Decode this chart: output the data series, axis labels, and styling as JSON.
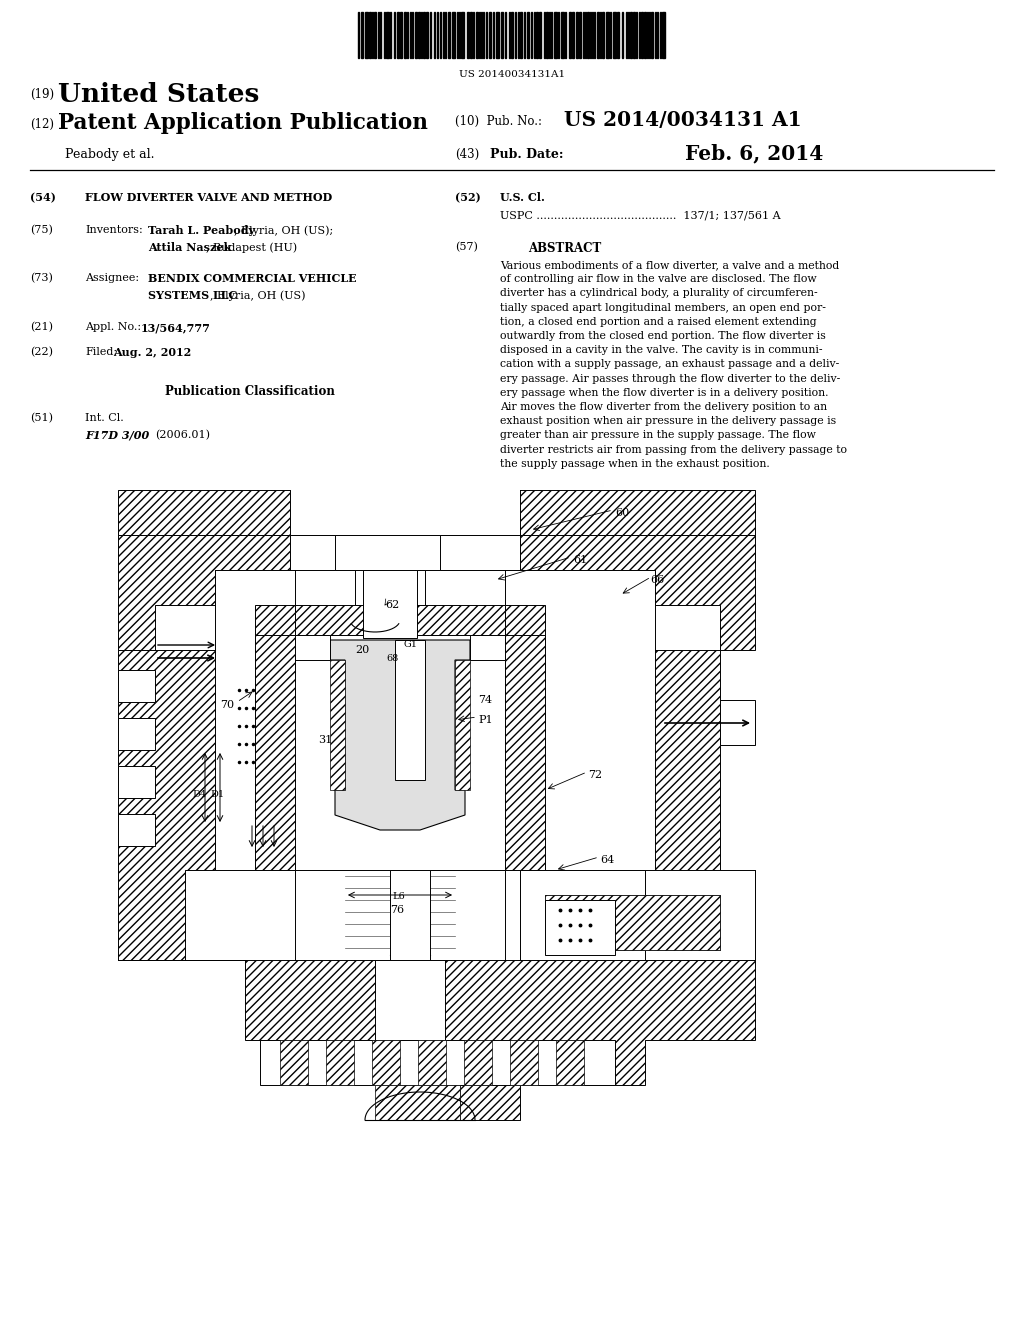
{
  "bg_color": "#ffffff",
  "barcode_text": "US 20140034131A1",
  "title_19_prefix": "(19)",
  "title_19": "United States",
  "title_12_prefix": "(12)",
  "title_12": "Patent Application Publication",
  "pub_no_prefix": "(10)",
  "pub_no_label": "Pub. No.:",
  "pub_no": "US 2014/0034131 A1",
  "pub_date_prefix": "(43)",
  "pub_date_label": "Pub. Date:",
  "pub_date": "Feb. 6, 2014",
  "applicant": "Peabody et al.",
  "f54_label": "(54)",
  "f54": "FLOW DIVERTER VALVE AND METHOD",
  "f52_label": "(52)",
  "f52": "U.S. Cl.",
  "uspc": "USPC ........................................  137/1; 137/561 A",
  "f75_label": "(75)",
  "f75_title": "Inventors:",
  "f75_name1_bold": "Tarah L. Peabody",
  "f75_name1_rest": ", Elyria, OH (US);",
  "f75_name2_bold": "Attila Naszek",
  "f75_name2_rest": ", Budapest (HU)",
  "f57_label": "(57)",
  "f57_title": "ABSTRACT",
  "abstract_lines": [
    "Various embodiments of a flow diverter, a valve and a method",
    "of controlling air flow in the valve are disclosed. The flow",
    "diverter has a cylindrical body, a plurality of circumferen-",
    "tially spaced apart longitudinal members, an open end por-",
    "tion, a closed end portion and a raised element extending",
    "outwardly from the closed end portion. The flow diverter is",
    "disposed in a cavity in the valve. The cavity is in communi-",
    "cation with a supply passage, an exhaust passage and a deliv-",
    "ery passage. Air passes through the flow diverter to the deliv-",
    "ery passage when the flow diverter is in a delivery position.",
    "Air moves the flow diverter from the delivery position to an",
    "exhaust position when air pressure in the delivery passage is",
    "greater than air pressure in the supply passage. The flow",
    "diverter restricts air from passing from the delivery passage to",
    "the supply passage when in the exhaust position."
  ],
  "f73_label": "(73)",
  "f73_title": "Assignee:",
  "f73_bold": "BENDIX COMMERCIAL VEHICLE",
  "f73_bold2": "SYSTEMS LLC",
  "f73_rest": ", Elyria, OH (US)",
  "f21_label": "(21)",
  "f21": "Appl. No.:",
  "f21_val": "13/564,777",
  "f22_label": "(22)",
  "f22_title": "Filed:",
  "f22_val": "Aug. 2, 2012",
  "pub_class": "Publication Classification",
  "f51_label": "(51)",
  "f51": "Int. Cl.",
  "f51b": "F17D 3/00",
  "f51c": "(2006.01)"
}
